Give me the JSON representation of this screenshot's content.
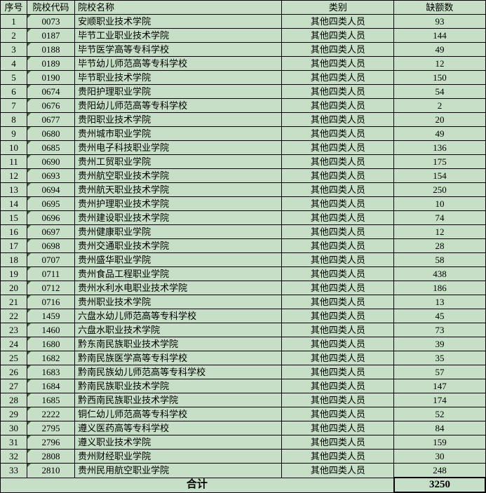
{
  "table": {
    "headers": {
      "seq": "序号",
      "code": "院校代码",
      "name": "院校名称",
      "category": "类别",
      "vacancy": "缺额数"
    },
    "rows": [
      {
        "seq": "1",
        "code": "0073",
        "name": "安顺职业技术学院",
        "category": "其他四类人员",
        "vacancy": "93"
      },
      {
        "seq": "2",
        "code": "0187",
        "name": "毕节工业职业技术学院",
        "category": "其他四类人员",
        "vacancy": "144"
      },
      {
        "seq": "3",
        "code": "0188",
        "name": "毕节医学高等专科学校",
        "category": "其他四类人员",
        "vacancy": "49"
      },
      {
        "seq": "4",
        "code": "0189",
        "name": "毕节幼儿师范高等专科学校",
        "category": "其他四类人员",
        "vacancy": "12"
      },
      {
        "seq": "5",
        "code": "0190",
        "name": "毕节职业技术学院",
        "category": "其他四类人员",
        "vacancy": "150"
      },
      {
        "seq": "6",
        "code": "0674",
        "name": "贵阳护理职业学院",
        "category": "其他四类人员",
        "vacancy": "54"
      },
      {
        "seq": "7",
        "code": "0676",
        "name": "贵阳幼儿师范高等专科学校",
        "category": "其他四类人员",
        "vacancy": "2"
      },
      {
        "seq": "8",
        "code": "0677",
        "name": "贵阳职业技术学院",
        "category": "其他四类人员",
        "vacancy": "20"
      },
      {
        "seq": "9",
        "code": "0680",
        "name": "贵州城市职业学院",
        "category": "其他四类人员",
        "vacancy": "49"
      },
      {
        "seq": "10",
        "code": "0685",
        "name": "贵州电子科技职业学院",
        "category": "其他四类人员",
        "vacancy": "136"
      },
      {
        "seq": "11",
        "code": "0690",
        "name": "贵州工贸职业学院",
        "category": "其他四类人员",
        "vacancy": "175"
      },
      {
        "seq": "12",
        "code": "0693",
        "name": "贵州航空职业技术学院",
        "category": "其他四类人员",
        "vacancy": "154"
      },
      {
        "seq": "13",
        "code": "0694",
        "name": "贵州航天职业技术学院",
        "category": "其他四类人员",
        "vacancy": "250"
      },
      {
        "seq": "14",
        "code": "0695",
        "name": "贵州护理职业技术学院",
        "category": "其他四类人员",
        "vacancy": "10"
      },
      {
        "seq": "15",
        "code": "0696",
        "name": "贵州建设职业技术学院",
        "category": "其他四类人员",
        "vacancy": "74"
      },
      {
        "seq": "16",
        "code": "0697",
        "name": "贵州健康职业学院",
        "category": "其他四类人员",
        "vacancy": "12"
      },
      {
        "seq": "17",
        "code": "0698",
        "name": "贵州交通职业技术学院",
        "category": "其他四类人员",
        "vacancy": "28"
      },
      {
        "seq": "18",
        "code": "0707",
        "name": "贵州盛华职业学院",
        "category": "其他四类人员",
        "vacancy": "58"
      },
      {
        "seq": "19",
        "code": "0711",
        "name": "贵州食品工程职业学院",
        "category": "其他四类人员",
        "vacancy": "438"
      },
      {
        "seq": "20",
        "code": "0712",
        "name": "贵州水利水电职业技术学院",
        "category": "其他四类人员",
        "vacancy": "186"
      },
      {
        "seq": "21",
        "code": "0716",
        "name": "贵州职业技术学院",
        "category": "其他四类人员",
        "vacancy": "13"
      },
      {
        "seq": "22",
        "code": "1459",
        "name": "六盘水幼儿师范高等专科学校",
        "category": "其他四类人员",
        "vacancy": "45"
      },
      {
        "seq": "23",
        "code": "1460",
        "name": "六盘水职业技术学院",
        "category": "其他四类人员",
        "vacancy": "73"
      },
      {
        "seq": "24",
        "code": "1680",
        "name": "黔东南民族职业技术学院",
        "category": "其他四类人员",
        "vacancy": "39"
      },
      {
        "seq": "25",
        "code": "1682",
        "name": "黔南民族医学高等专科学校",
        "category": "其他四类人员",
        "vacancy": "35"
      },
      {
        "seq": "26",
        "code": "1683",
        "name": "黔南民族幼儿师范高等专科学校",
        "category": "其他四类人员",
        "vacancy": "57"
      },
      {
        "seq": "27",
        "code": "1684",
        "name": "黔南民族职业技术学院",
        "category": "其他四类人员",
        "vacancy": "147"
      },
      {
        "seq": "28",
        "code": "1685",
        "name": "黔西南民族职业技术学院",
        "category": "其他四类人员",
        "vacancy": "174"
      },
      {
        "seq": "29",
        "code": "2222",
        "name": "铜仁幼儿师范高等专科学校",
        "category": "其他四类人员",
        "vacancy": "52"
      },
      {
        "seq": "30",
        "code": "2795",
        "name": "遵义医药高等专科学校",
        "category": "其他四类人员",
        "vacancy": "84"
      },
      {
        "seq": "31",
        "code": "2796",
        "name": "遵义职业技术学院",
        "category": "其他四类人员",
        "vacancy": "159"
      },
      {
        "seq": "32",
        "code": "2808",
        "name": "贵州财经职业学院",
        "category": "其他四类人员",
        "vacancy": "30"
      },
      {
        "seq": "33",
        "code": "2810",
        "name": "贵州民用航空职业学院",
        "category": "其他四类人员",
        "vacancy": "248"
      }
    ],
    "total": {
      "label": "合计",
      "value": "3250"
    }
  },
  "colors": {
    "background": "#c6dfc6",
    "border": "#000000",
    "mark": "#2a6e2a"
  }
}
